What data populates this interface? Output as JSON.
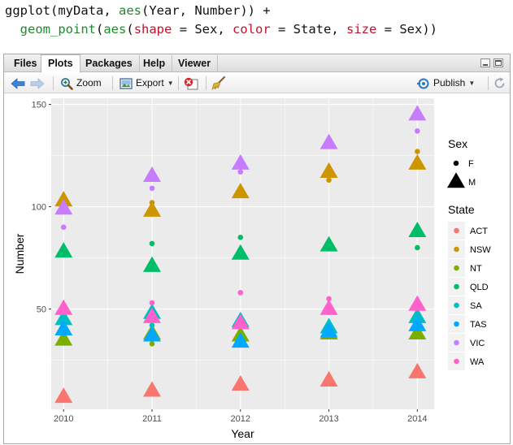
{
  "code": {
    "line1": {
      "fn": "ggplot",
      "p1": "(myData, ",
      "fn2": "aes",
      "p2": "(Year, Number)) +"
    },
    "line2": {
      "indent": "  ",
      "fn": "geom_point",
      "p1": "(",
      "fn2": "aes",
      "p2": "(",
      "k1": "shape",
      "p3": " = Sex, ",
      "k2": "color",
      "p4": " = State, ",
      "k3": "size",
      "p5": " = Sex))"
    }
  },
  "tabs": [
    {
      "label": "Files"
    },
    {
      "label": "Plots",
      "active": true
    },
    {
      "label": "Packages"
    },
    {
      "label": "Help"
    },
    {
      "label": "Viewer"
    }
  ],
  "toolbar": {
    "zoom_label": "Zoom",
    "export_label": "Export",
    "publish_label": "Publish"
  },
  "icons": {
    "back": "arrow-left-icon",
    "forward": "arrow-right-icon",
    "zoom": "magnifier-icon",
    "export": "export-image-icon",
    "remove": "remove-plot-icon",
    "clear": "broom-icon",
    "publish": "publish-icon",
    "refresh": "refresh-icon"
  },
  "colors": {
    "panel_bg": "#EBEBEB",
    "grid": "#FFFFFF",
    "ACT": "#F8766D",
    "NSW": "#CD9600",
    "NT": "#7CAE00",
    "QLD": "#00BE67",
    "SA": "#00BFC4",
    "TAS": "#00A9FF",
    "VIC": "#C77CFF",
    "WA": "#FF61CC"
  },
  "chart_data": {
    "type": "scatter",
    "xlabel": "Year",
    "ylabel": "Number",
    "xticks": [
      "2010",
      "2011",
      "2012",
      "2013",
      "2014"
    ],
    "yticks": [
      50,
      100,
      150
    ],
    "xlim": [
      2009.86,
      2014.19
    ],
    "ylim": [
      1,
      153
    ],
    "grid": true,
    "legend_placement": "right",
    "legends": {
      "shape_size": {
        "title": "Sex",
        "entries": [
          "F",
          "M"
        ]
      },
      "color": {
        "title": "State",
        "entries": [
          "ACT",
          "NSW",
          "NT",
          "QLD",
          "SA",
          "TAS",
          "VIC",
          "WA"
        ]
      }
    },
    "points": [
      {
        "year": 2010,
        "state": "ACT",
        "sex": "M",
        "value": 7
      },
      {
        "year": 2010,
        "state": "NSW",
        "sex": "M",
        "value": 103
      },
      {
        "year": 2010,
        "state": "NT",
        "sex": "M",
        "value": 35
      },
      {
        "year": 2010,
        "state": "QLD",
        "sex": "M",
        "value": 78
      },
      {
        "year": 2010,
        "state": "SA",
        "sex": "M",
        "value": 45
      },
      {
        "year": 2010,
        "state": "TAS",
        "sex": "M",
        "value": 40
      },
      {
        "year": 2010,
        "state": "VIC",
        "sex": "M",
        "value": 99
      },
      {
        "year": 2010,
        "state": "VIC",
        "sex": "F",
        "value": 90
      },
      {
        "year": 2010,
        "state": "WA",
        "sex": "M",
        "value": 50
      },
      {
        "year": 2011,
        "state": "ACT",
        "sex": "M",
        "value": 10
      },
      {
        "year": 2011,
        "state": "NSW",
        "sex": "M",
        "value": 98
      },
      {
        "year": 2011,
        "state": "NSW",
        "sex": "F",
        "value": 102
      },
      {
        "year": 2011,
        "state": "NT",
        "sex": "M",
        "value": 38
      },
      {
        "year": 2011,
        "state": "NT",
        "sex": "F",
        "value": 33
      },
      {
        "year": 2011,
        "state": "QLD",
        "sex": "M",
        "value": 71
      },
      {
        "year": 2011,
        "state": "QLD",
        "sex": "F",
        "value": 82
      },
      {
        "year": 2011,
        "state": "SA",
        "sex": "M",
        "value": 48
      },
      {
        "year": 2011,
        "state": "SA",
        "sex": "F",
        "value": 42
      },
      {
        "year": 2011,
        "state": "TAS",
        "sex": "M",
        "value": 37
      },
      {
        "year": 2011,
        "state": "VIC",
        "sex": "M",
        "value": 115
      },
      {
        "year": 2011,
        "state": "VIC",
        "sex": "F",
        "value": 109
      },
      {
        "year": 2011,
        "state": "WA",
        "sex": "M",
        "value": 46
      },
      {
        "year": 2011,
        "state": "WA",
        "sex": "F",
        "value": 53
      },
      {
        "year": 2012,
        "state": "ACT",
        "sex": "M",
        "value": 13
      },
      {
        "year": 2012,
        "state": "NSW",
        "sex": "M",
        "value": 107
      },
      {
        "year": 2012,
        "state": "NT",
        "sex": "M",
        "value": 37
      },
      {
        "year": 2012,
        "state": "QLD",
        "sex": "M",
        "value": 77
      },
      {
        "year": 2012,
        "state": "QLD",
        "sex": "F",
        "value": 85
      },
      {
        "year": 2012,
        "state": "SA",
        "sex": "M",
        "value": 44
      },
      {
        "year": 2012,
        "state": "TAS",
        "sex": "M",
        "value": 34
      },
      {
        "year": 2012,
        "state": "VIC",
        "sex": "M",
        "value": 121
      },
      {
        "year": 2012,
        "state": "VIC",
        "sex": "F",
        "value": 117
      },
      {
        "year": 2012,
        "state": "WA",
        "sex": "M",
        "value": 43
      },
      {
        "year": 2012,
        "state": "WA",
        "sex": "F",
        "value": 58
      },
      {
        "year": 2013,
        "state": "ACT",
        "sex": "M",
        "value": 15
      },
      {
        "year": 2013,
        "state": "NSW",
        "sex": "M",
        "value": 117
      },
      {
        "year": 2013,
        "state": "NSW",
        "sex": "F",
        "value": 113
      },
      {
        "year": 2013,
        "state": "NT",
        "sex": "M",
        "value": 38
      },
      {
        "year": 2013,
        "state": "QLD",
        "sex": "M",
        "value": 81
      },
      {
        "year": 2013,
        "state": "SA",
        "sex": "M",
        "value": 41
      },
      {
        "year": 2013,
        "state": "TAS",
        "sex": "M",
        "value": 39
      },
      {
        "year": 2013,
        "state": "VIC",
        "sex": "M",
        "value": 131
      },
      {
        "year": 2013,
        "state": "WA",
        "sex": "M",
        "value": 50
      },
      {
        "year": 2013,
        "state": "WA",
        "sex": "F",
        "value": 55
      },
      {
        "year": 2014,
        "state": "ACT",
        "sex": "M",
        "value": 19
      },
      {
        "year": 2014,
        "state": "NSW",
        "sex": "M",
        "value": 121
      },
      {
        "year": 2014,
        "state": "NSW",
        "sex": "F",
        "value": 127
      },
      {
        "year": 2014,
        "state": "NT",
        "sex": "M",
        "value": 38
      },
      {
        "year": 2014,
        "state": "QLD",
        "sex": "M",
        "value": 88
      },
      {
        "year": 2014,
        "state": "QLD",
        "sex": "F",
        "value": 80
      },
      {
        "year": 2014,
        "state": "SA",
        "sex": "M",
        "value": 46
      },
      {
        "year": 2014,
        "state": "TAS",
        "sex": "M",
        "value": 42
      },
      {
        "year": 2014,
        "state": "VIC",
        "sex": "M",
        "value": 145
      },
      {
        "year": 2014,
        "state": "VIC",
        "sex": "F",
        "value": 137
      },
      {
        "year": 2014,
        "state": "WA",
        "sex": "M",
        "value": 52
      }
    ]
  }
}
